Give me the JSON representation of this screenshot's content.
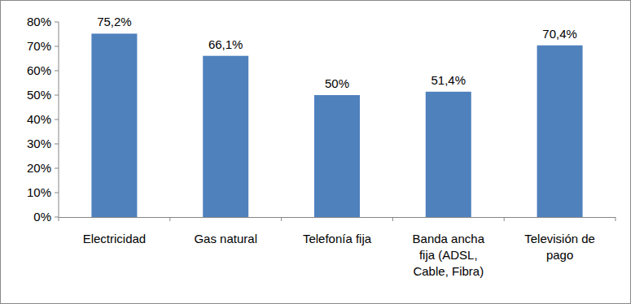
{
  "chart_data": {
    "type": "bar",
    "categories": [
      "Electricidad",
      "Gas natural",
      "Telefonía fija",
      "Banda ancha fija (ADSL, Cable, Fibra)",
      "Televisión de pago"
    ],
    "values": [
      75.2,
      66.1,
      50,
      51.4,
      70.4
    ],
    "value_labels": [
      "75,2%",
      "66,1%",
      "50%",
      "51,4%",
      "70,4%"
    ],
    "color": "#4f81bd",
    "ylim": [
      0,
      80
    ],
    "yticks": [
      {
        "value": 0,
        "label": "0%"
      },
      {
        "value": 10,
        "label": "10%"
      },
      {
        "value": 20,
        "label": "20%"
      },
      {
        "value": 30,
        "label": "30%"
      },
      {
        "value": 40,
        "label": "40%"
      },
      {
        "value": 50,
        "label": "50%"
      },
      {
        "value": 60,
        "label": "60%"
      },
      {
        "value": 70,
        "label": "70%"
      },
      {
        "value": 80,
        "label": "80%"
      }
    ],
    "grid": false,
    "data_labels": true
  }
}
